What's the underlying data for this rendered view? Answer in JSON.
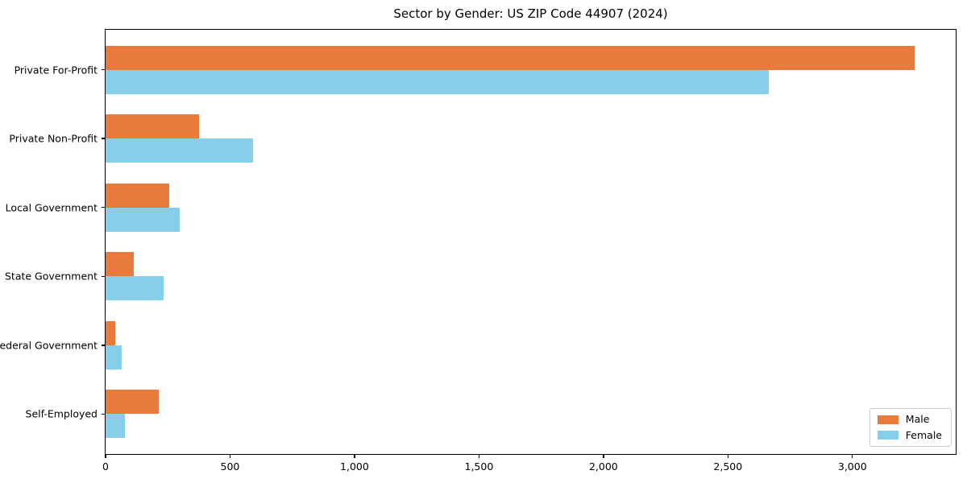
{
  "figure": {
    "title": "Sector by Gender: US ZIP Code 44907 (2024)"
  },
  "chart_data": {
    "type": "bar",
    "orientation": "horizontal",
    "title": "Sector by Gender: US ZIP Code 44907 (2024)",
    "categories": [
      "Private For-Profit",
      "Private Non-Profit",
      "Local Government",
      "State Government",
      "Federal Government",
      "Self-Employed"
    ],
    "series": [
      {
        "name": "Male",
        "color": "#e87b3b",
        "values": [
          3250,
          375,
          255,
          113,
          38,
          213
        ]
      },
      {
        "name": "Female",
        "color": "#87ceeb",
        "values": [
          2665,
          591,
          297,
          233,
          64,
          78
        ]
      }
    ],
    "xlabel": "",
    "ylabel": "",
    "xlim": [
      0,
      3415
    ],
    "x_ticks": [
      0,
      500,
      1000,
      1500,
      2000,
      2500,
      3000
    ],
    "x_tick_labels": [
      "0",
      "500",
      "1,000",
      "1,500",
      "2,000",
      "2,500",
      "3,000"
    ],
    "grid": false,
    "legend": {
      "position": "lower right"
    }
  }
}
